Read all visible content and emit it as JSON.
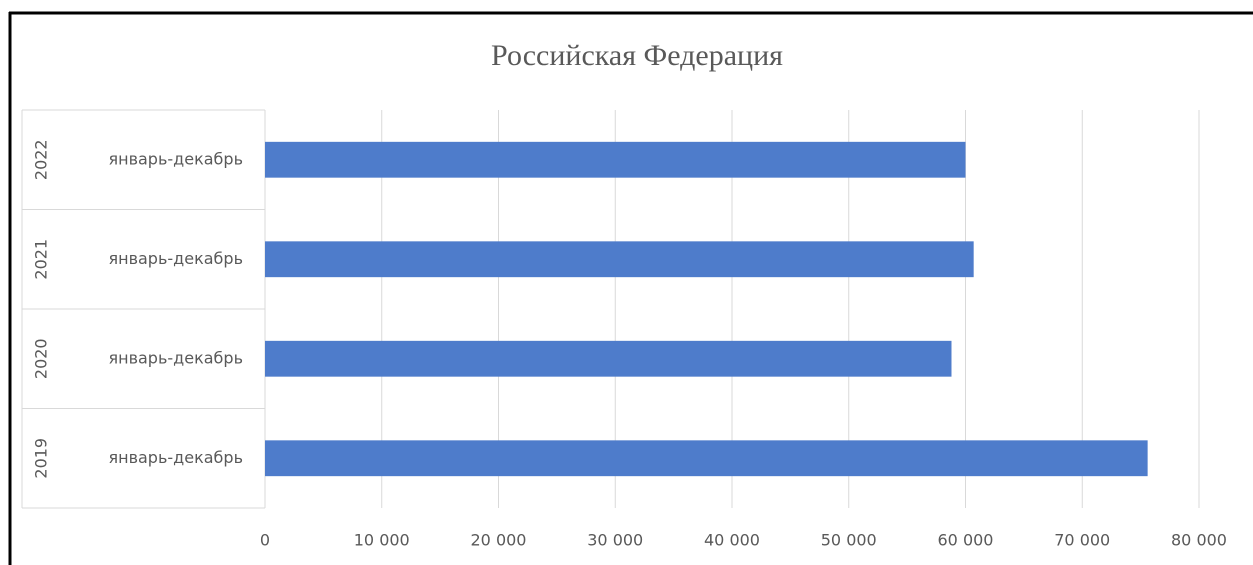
{
  "chart_data": {
    "type": "bar",
    "orientation": "horizontal",
    "title": "Российская Федерация",
    "groups": [
      "2019",
      "2020",
      "2021",
      "2022"
    ],
    "categories": [
      "январь-декабрь",
      "январь-декабрь",
      "январь-декабрь",
      "январь-декабрь"
    ],
    "values": [
      75600,
      58800,
      60700,
      60000
    ],
    "color": "#4e7ccb",
    "xlim": [
      0,
      80000
    ],
    "xticks": [
      0,
      {
        "value": 10000,
        "label": "10 000"
      },
      {
        "value": 20000,
        "label": "20 000"
      },
      {
        "value": 30000,
        "label": "30 000"
      },
      {
        "value": 40000,
        "label": "40 000"
      },
      {
        "value": 50000,
        "label": "50 000"
      },
      {
        "value": 60000,
        "label": "60 000"
      },
      {
        "value": 70000,
        "label": "70 000"
      },
      {
        "value": 80000,
        "label": "80 000"
      }
    ],
    "grid": true
  }
}
